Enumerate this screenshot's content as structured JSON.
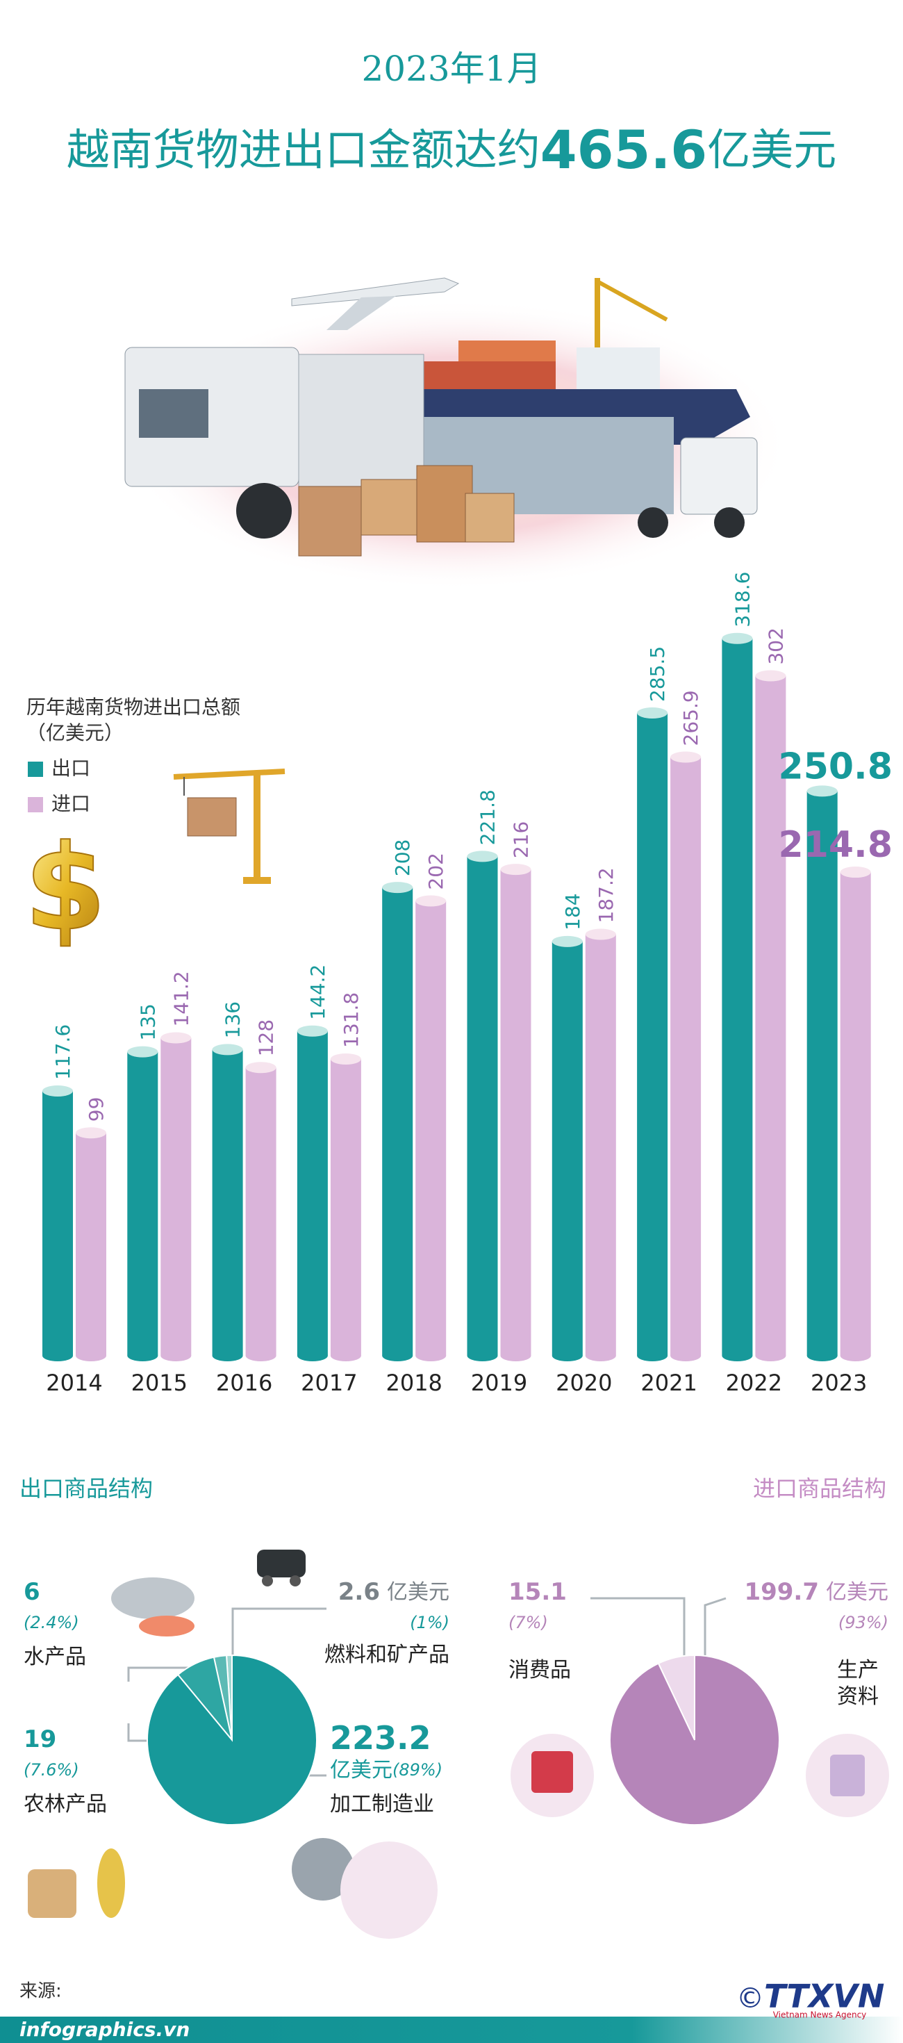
{
  "header": {
    "date": "2023年1月",
    "title_prefix": "越南货物进出口金额达约",
    "total": 465.6,
    "title_suffix": "亿美元"
  },
  "chart_data": [
    {
      "type": "bar",
      "title": "历年越南货物进出口总额",
      "unit": "（亿美元）",
      "categories": [
        "2014",
        "2015",
        "2016",
        "2017",
        "2018",
        "2019",
        "2020",
        "2021",
        "2022",
        "2023"
      ],
      "series": [
        {
          "name": "出口",
          "color": "#17999a",
          "cap_color": "#c4e8e4",
          "values": [
            117.6,
            135,
            136,
            144.2,
            208,
            221.8,
            184,
            285.5,
            318.6,
            250.8
          ]
        },
        {
          "name": "进口",
          "color": "#dab4da",
          "cap_color": "#f6e4ee",
          "values": [
            99,
            141.2,
            128,
            131.8,
            202,
            216,
            187.2,
            265.9,
            302,
            214.8
          ]
        }
      ]
    },
    {
      "type": "pie",
      "title": "出口商品结构",
      "unit": "亿美元",
      "categories": [
        "燃料和矿产品",
        "水产品",
        "农林产品",
        "加工制造业"
      ],
      "values": [
        2.6,
        6,
        19,
        223.2
      ],
      "shares": [
        "(1%)",
        "(2.4%)",
        "(7.6%)",
        "(89%)"
      ],
      "colors": [
        "#9fd7d2",
        "#5cbab5",
        "#2ea6a3",
        "#17999a"
      ]
    },
    {
      "type": "pie",
      "title": "进口商品结构",
      "unit": "亿美元",
      "categories": [
        "消费品",
        "生产资料"
      ],
      "values": [
        15.1,
        199.7
      ],
      "shares": [
        "(7%)",
        "(93%)"
      ],
      "colors": [
        "#eddaec",
        "#b585b9"
      ]
    }
  ],
  "footer": {
    "source": "来源:",
    "site": "infographics.vn",
    "copyright": "©",
    "logo": "TTXVN",
    "agency": "Vietnam News Agency"
  }
}
